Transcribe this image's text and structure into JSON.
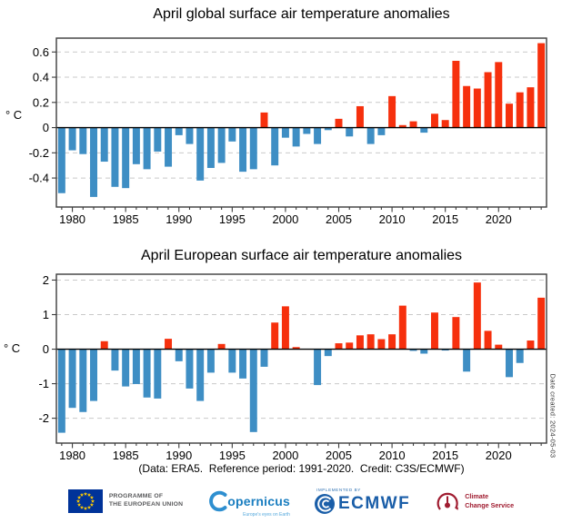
{
  "chart_data": [
    {
      "type": "bar",
      "title": "April global surface air temperature anomalies",
      "ylabel": "° C",
      "x": [
        1979,
        1980,
        1981,
        1982,
        1983,
        1984,
        1985,
        1986,
        1987,
        1988,
        1989,
        1990,
        1991,
        1992,
        1993,
        1994,
        1995,
        1996,
        1997,
        1998,
        1999,
        2000,
        2001,
        2002,
        2003,
        2004,
        2005,
        2006,
        2007,
        2008,
        2009,
        2010,
        2011,
        2012,
        2013,
        2014,
        2015,
        2016,
        2017,
        2018,
        2019,
        2020,
        2021,
        2022,
        2023,
        2024
      ],
      "values": [
        -0.52,
        -0.18,
        -0.21,
        -0.55,
        -0.27,
        -0.47,
        -0.48,
        -0.29,
        -0.33,
        -0.19,
        -0.31,
        -0.06,
        -0.13,
        -0.42,
        -0.32,
        -0.28,
        -0.11,
        -0.35,
        -0.33,
        0.12,
        -0.3,
        -0.08,
        -0.15,
        -0.05,
        -0.13,
        -0.02,
        0.07,
        -0.07,
        0.17,
        -0.13,
        -0.06,
        0.25,
        0.02,
        0.05,
        -0.04,
        0.11,
        0.06,
        0.53,
        0.33,
        0.31,
        0.44,
        0.52,
        0.19,
        0.28,
        0.32,
        0.67
      ],
      "ylim": [
        -0.63,
        0.71
      ],
      "yticks": [
        {
          "v": 0.6,
          "label": "0.6"
        },
        {
          "v": 0.4,
          "label": "0.4"
        },
        {
          "v": 0.2,
          "label": "0.2"
        },
        {
          "v": 0,
          "label": "0"
        },
        {
          "v": -0.2,
          "label": "-0.2"
        },
        {
          "v": -0.4,
          "label": "-0.4"
        }
      ],
      "xticks": [
        {
          "v": 1980,
          "label": "1980"
        },
        {
          "v": 1985,
          "label": "1985"
        },
        {
          "v": 1990,
          "label": "1990"
        },
        {
          "v": 1995,
          "label": "1995"
        },
        {
          "v": 2000,
          "label": "2000"
        },
        {
          "v": 2005,
          "label": "2005"
        },
        {
          "v": 2010,
          "label": "2010"
        },
        {
          "v": 2015,
          "label": "2015"
        },
        {
          "v": 2020,
          "label": "2020"
        }
      ],
      "bar_colors": {
        "positive": "#f6300d",
        "negative": "#3e8ec4"
      },
      "grid": "horizontal-dashed",
      "legend": "none"
    },
    {
      "type": "bar",
      "title": "April European surface air temperature anomalies",
      "ylabel": "° C",
      "x": [
        1979,
        1980,
        1981,
        1982,
        1983,
        1984,
        1985,
        1986,
        1987,
        1988,
        1989,
        1990,
        1991,
        1992,
        1993,
        1994,
        1995,
        1996,
        1997,
        1998,
        1999,
        2000,
        2001,
        2002,
        2003,
        2004,
        2005,
        2006,
        2007,
        2008,
        2009,
        2010,
        2011,
        2012,
        2013,
        2014,
        2015,
        2016,
        2017,
        2018,
        2019,
        2020,
        2021,
        2022,
        2023,
        2024
      ],
      "values": [
        -2.42,
        -1.7,
        -1.82,
        -1.5,
        0.23,
        -0.62,
        -1.08,
        -1.01,
        -1.4,
        -1.43,
        0.3,
        -0.35,
        -1.14,
        -1.5,
        -0.68,
        0.15,
        -0.68,
        -0.85,
        -2.4,
        -0.51,
        0.77,
        1.24,
        0.06,
        0.0,
        -1.04,
        -0.2,
        0.17,
        0.19,
        0.4,
        0.43,
        0.29,
        0.43,
        1.26,
        -0.05,
        -0.13,
        1.06,
        -0.04,
        0.93,
        -0.65,
        1.93,
        0.53,
        0.13,
        -0.81,
        -0.4,
        0.25,
        1.49
      ],
      "ylim": [
        -2.72,
        2.17
      ],
      "yticks": [
        {
          "v": 2,
          "label": "2"
        },
        {
          "v": 1,
          "label": "1"
        },
        {
          "v": 0,
          "label": "0"
        },
        {
          "v": -1,
          "label": "-1"
        },
        {
          "v": -2,
          "label": "-2"
        }
      ],
      "xticks": [
        {
          "v": 1980,
          "label": "1980"
        },
        {
          "v": 1985,
          "label": "1985"
        },
        {
          "v": 1990,
          "label": "1990"
        },
        {
          "v": 1995,
          "label": "1995"
        },
        {
          "v": 2000,
          "label": "2000"
        },
        {
          "v": 2005,
          "label": "2005"
        },
        {
          "v": 2010,
          "label": "2010"
        },
        {
          "v": 2015,
          "label": "2015"
        },
        {
          "v": 2020,
          "label": "2020"
        }
      ],
      "bar_colors": {
        "positive": "#f6300d",
        "negative": "#3e8ec4"
      },
      "grid": "horizontal-dashed",
      "legend": "none"
    }
  ],
  "footer": {
    "caption": "(Data: ERA5.  Reference period: 1991-2020.  Credit: C3S/ECMWF)",
    "date_created": "Date created: 2024-05-03",
    "logos": {
      "eu_line1": "PROGRAMME OF",
      "eu_line2": "THE EUROPEAN UNION",
      "copernicus": "opernicus",
      "copernicus_tagline": "Europe's eyes on Earth",
      "implemented_by": "IMPLEMENTED BY",
      "ecmwf": "ECMWF",
      "c3s_line1": "Climate",
      "c3s_line2": "Change Service"
    }
  }
}
